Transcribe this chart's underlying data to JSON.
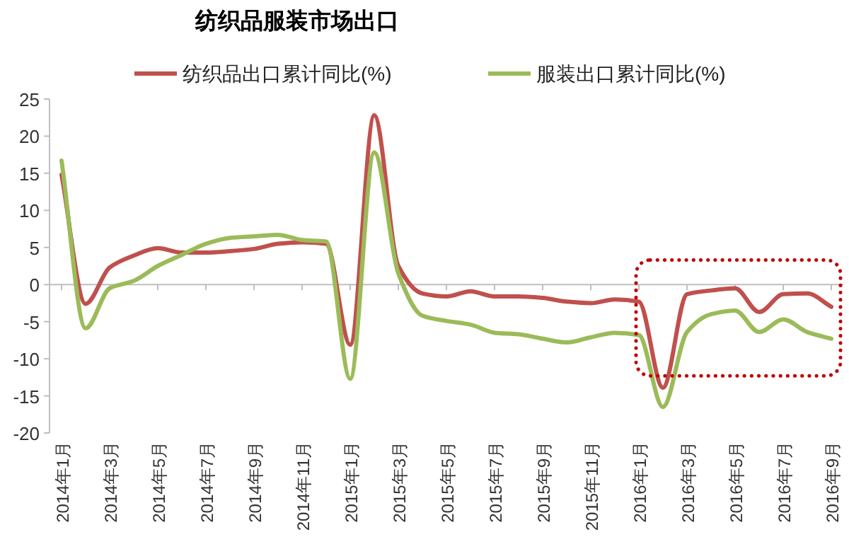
{
  "chart_data": {
    "type": "line",
    "title": "纺织品服装市场出口",
    "categories": [
      "2014年1月",
      null,
      "2014年3月",
      null,
      "2014年5月",
      null,
      "2014年7月",
      null,
      "2014年9月",
      null,
      "2014年11月",
      null,
      "2015年1月",
      null,
      "2015年3月",
      null,
      "2015年5月",
      null,
      "2015年7月",
      null,
      "2015年9月",
      null,
      "2015年11月",
      null,
      "2016年1月",
      null,
      "2016年3月",
      null,
      "2016年5月",
      null,
      "2016年7月",
      null,
      "2016年9月"
    ],
    "series": [
      {
        "name": "纺织品出口累计同比(%)",
        "color": "#c0504d",
        "values": [
          14.8,
          -2.6,
          2.3,
          3.9,
          4.9,
          4.3,
          4.3,
          4.5,
          4.8,
          5.5,
          5.7,
          5.5,
          -8.1,
          22.8,
          2.5,
          -1.2,
          -1.6,
          -0.9,
          -1.6,
          -1.6,
          -1.8,
          -2.3,
          -2.5,
          -2.0,
          -2.3,
          -13.9,
          -1.3,
          -0.8,
          -0.5,
          -3.7,
          -1.3,
          -1.2,
          -3.0
        ]
      },
      {
        "name": "服装出口累计同比(%)",
        "color": "#9bbb59",
        "values": [
          16.7,
          -5.9,
          -0.5,
          0.5,
          2.5,
          4.0,
          5.5,
          6.3,
          6.5,
          6.7,
          6.0,
          5.8,
          -12.7,
          17.8,
          1.5,
          -4.2,
          -4.9,
          -5.4,
          -6.5,
          -6.7,
          -7.3,
          -7.8,
          -7.1,
          -6.5,
          -6.8,
          -16.5,
          -6.4,
          -4.0,
          -3.5,
          -6.4,
          -4.7,
          -6.4,
          -7.3
        ]
      }
    ],
    "ylim": [
      -20,
      25
    ],
    "yticks": [
      -20,
      -15,
      -10,
      -5,
      0,
      5,
      10,
      15,
      20,
      25
    ],
    "legend": "top",
    "marker": "none",
    "line_style": "solid"
  }
}
